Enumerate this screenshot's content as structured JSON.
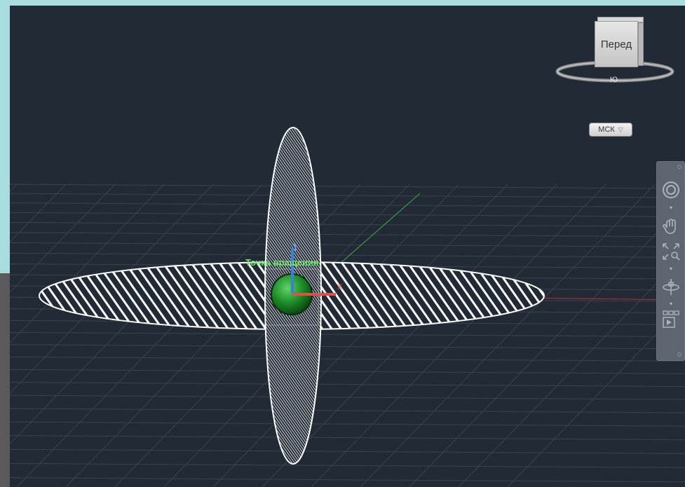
{
  "viewcube": {
    "face_label": "Перед",
    "compass_south": "Ю"
  },
  "wcs_menu": {
    "label": "МСК"
  },
  "scene": {
    "point_label": "Точка вращения",
    "colors": {
      "background": "#222a35",
      "grid": "#3a4350",
      "hatch": "#ffffff",
      "pivot_sphere": "#1f8f2a",
      "x_axis": "#e0504a",
      "y_axis": "#3fae3f",
      "z_axis": "#3b7fd6"
    }
  },
  "navbar": {
    "items": [
      {
        "name": "steering-wheel",
        "icon": "steering-wheel-icon"
      },
      {
        "name": "pan",
        "icon": "hand-icon"
      },
      {
        "name": "zoom",
        "icon": "zoom-extents-icon"
      },
      {
        "name": "orbit",
        "icon": "orbit-icon"
      },
      {
        "name": "showmotion",
        "icon": "showmotion-icon"
      }
    ]
  }
}
